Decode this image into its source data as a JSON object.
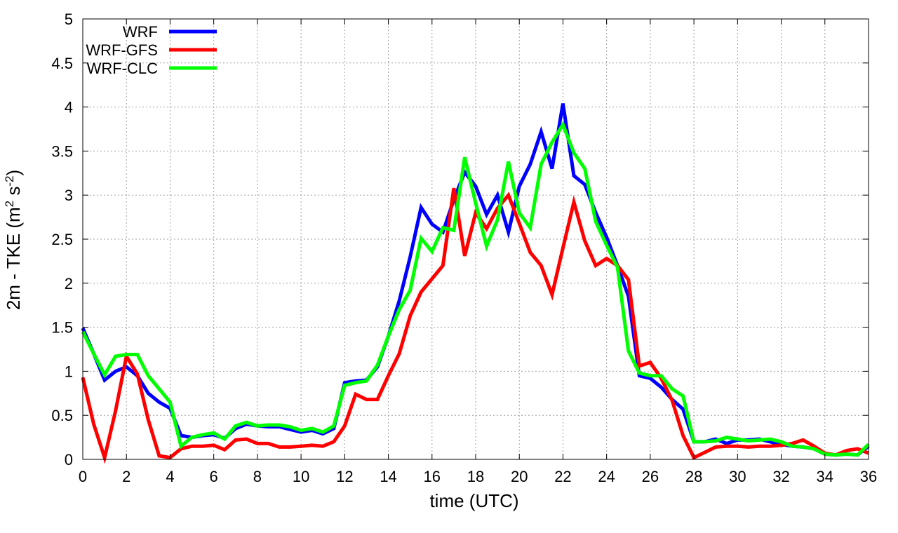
{
  "chart_data": {
    "type": "line",
    "xlabel": "time (UTC)",
    "ylabel_main": "2m - TKE (m",
    "ylabel_sup1": "2",
    "ylabel_mid": " s",
    "ylabel_sup2": "-2",
    "ylabel_end": ")",
    "xlim": [
      0,
      36
    ],
    "ylim": [
      0,
      5
    ],
    "xticks": [
      "0",
      "2",
      "4",
      "6",
      "8",
      "10",
      "12",
      "14",
      "16",
      "18",
      "20",
      "22",
      "24",
      "26",
      "28",
      "30",
      "32",
      "34",
      "36"
    ],
    "yticks": [
      "0",
      "0.5",
      "1",
      "1.5",
      "2",
      "2.5",
      "3",
      "3.5",
      "4",
      "4.5",
      "5"
    ],
    "grid": true,
    "legend_position": "top-left",
    "series": [
      {
        "name": "WRF",
        "color": "#0000ff",
        "points": [
          [
            0,
            1.49
          ],
          [
            0.5,
            1.2
          ],
          [
            1,
            0.9
          ],
          [
            1.5,
            1.0
          ],
          [
            2,
            1.05
          ],
          [
            2.5,
            0.95
          ],
          [
            3,
            0.75
          ],
          [
            3.5,
            0.65
          ],
          [
            4,
            0.58
          ],
          [
            4.5,
            0.27
          ],
          [
            5,
            0.25
          ],
          [
            5.5,
            0.27
          ],
          [
            6,
            0.28
          ],
          [
            6.5,
            0.24
          ],
          [
            7,
            0.35
          ],
          [
            7.5,
            0.4
          ],
          [
            8,
            0.38
          ],
          [
            8.5,
            0.37
          ],
          [
            9,
            0.37
          ],
          [
            9.5,
            0.34
          ],
          [
            10,
            0.31
          ],
          [
            10.5,
            0.33
          ],
          [
            11,
            0.29
          ],
          [
            11.5,
            0.35
          ],
          [
            12,
            0.87
          ],
          [
            12.5,
            0.89
          ],
          [
            13,
            0.9
          ],
          [
            13.5,
            1.05
          ],
          [
            14,
            1.4
          ],
          [
            14.5,
            1.8
          ],
          [
            15,
            2.3
          ],
          [
            15.5,
            2.86
          ],
          [
            16,
            2.67
          ],
          [
            16.5,
            2.58
          ],
          [
            17,
            2.95
          ],
          [
            17.5,
            3.26
          ],
          [
            18,
            3.1
          ],
          [
            18.5,
            2.78
          ],
          [
            19,
            3.0
          ],
          [
            19.5,
            2.58
          ],
          [
            20,
            3.1
          ],
          [
            20.5,
            3.35
          ],
          [
            21,
            3.72
          ],
          [
            21.5,
            3.3
          ],
          [
            22,
            4.04
          ],
          [
            22.5,
            3.22
          ],
          [
            23,
            3.12
          ],
          [
            23.5,
            2.8
          ],
          [
            24,
            2.52
          ],
          [
            24.5,
            2.2
          ],
          [
            25,
            1.85
          ],
          [
            25.5,
            0.95
          ],
          [
            26,
            0.92
          ],
          [
            26.5,
            0.82
          ],
          [
            27,
            0.68
          ],
          [
            27.5,
            0.57
          ],
          [
            28,
            0.2
          ],
          [
            28.5,
            0.2
          ],
          [
            29,
            0.23
          ],
          [
            29.5,
            0.18
          ],
          [
            30,
            0.22
          ],
          [
            30.5,
            0.22
          ],
          [
            31,
            0.23
          ],
          [
            31.5,
            0.2
          ],
          [
            32,
            0.17
          ],
          [
            32.5,
            0.15
          ],
          [
            33,
            0.14
          ],
          [
            33.5,
            0.12
          ],
          [
            34,
            0.06
          ],
          [
            34.5,
            0.05
          ],
          [
            35,
            0.06
          ],
          [
            35.5,
            0.05
          ],
          [
            36,
            0.15
          ]
        ]
      },
      {
        "name": "WRF-GFS",
        "color": "#ff0000",
        "points": [
          [
            0,
            0.93
          ],
          [
            0.5,
            0.4
          ],
          [
            1,
            0.02
          ],
          [
            1.5,
            0.55
          ],
          [
            2,
            1.17
          ],
          [
            2.5,
            0.97
          ],
          [
            3,
            0.45
          ],
          [
            3.5,
            0.04
          ],
          [
            4,
            0.02
          ],
          [
            4.5,
            0.12
          ],
          [
            5,
            0.15
          ],
          [
            5.5,
            0.15
          ],
          [
            6,
            0.16
          ],
          [
            6.5,
            0.11
          ],
          [
            7,
            0.22
          ],
          [
            7.5,
            0.23
          ],
          [
            8,
            0.18
          ],
          [
            8.5,
            0.18
          ],
          [
            9,
            0.14
          ],
          [
            9.5,
            0.14
          ],
          [
            10,
            0.15
          ],
          [
            10.5,
            0.16
          ],
          [
            11,
            0.15
          ],
          [
            11.5,
            0.2
          ],
          [
            12,
            0.38
          ],
          [
            12.5,
            0.74
          ],
          [
            13,
            0.68
          ],
          [
            13.5,
            0.68
          ],
          [
            14,
            0.95
          ],
          [
            14.5,
            1.2
          ],
          [
            15,
            1.63
          ],
          [
            15.5,
            1.9
          ],
          [
            16,
            2.05
          ],
          [
            16.5,
            2.2
          ],
          [
            17,
            3.08
          ],
          [
            17.5,
            2.31
          ],
          [
            18,
            2.8
          ],
          [
            18.5,
            2.62
          ],
          [
            19,
            2.85
          ],
          [
            19.5,
            3.0
          ],
          [
            20,
            2.68
          ],
          [
            20.5,
            2.35
          ],
          [
            21,
            2.2
          ],
          [
            21.5,
            1.87
          ],
          [
            22,
            2.4
          ],
          [
            22.5,
            2.92
          ],
          [
            23,
            2.48
          ],
          [
            23.5,
            2.2
          ],
          [
            24,
            2.28
          ],
          [
            24.5,
            2.2
          ],
          [
            25,
            2.04
          ],
          [
            25.5,
            1.06
          ],
          [
            26,
            1.1
          ],
          [
            26.5,
            0.92
          ],
          [
            27,
            0.67
          ],
          [
            27.5,
            0.27
          ],
          [
            28,
            0.02
          ],
          [
            28.5,
            0.08
          ],
          [
            29,
            0.14
          ],
          [
            29.5,
            0.15
          ],
          [
            30,
            0.15
          ],
          [
            30.5,
            0.14
          ],
          [
            31,
            0.15
          ],
          [
            31.5,
            0.15
          ],
          [
            32,
            0.16
          ],
          [
            32.5,
            0.18
          ],
          [
            33,
            0.22
          ],
          [
            33.5,
            0.15
          ],
          [
            34,
            0.07
          ],
          [
            34.5,
            0.05
          ],
          [
            35,
            0.1
          ],
          [
            35.5,
            0.12
          ],
          [
            36,
            0.07
          ]
        ]
      },
      {
        "name": "WRF-CLC",
        "color": "#00ff00",
        "points": [
          [
            0,
            1.45
          ],
          [
            0.5,
            1.2
          ],
          [
            1,
            0.96
          ],
          [
            1.5,
            1.17
          ],
          [
            2,
            1.19
          ],
          [
            2.5,
            1.19
          ],
          [
            3,
            0.95
          ],
          [
            3.5,
            0.8
          ],
          [
            4,
            0.65
          ],
          [
            4.5,
            0.15
          ],
          [
            5,
            0.25
          ],
          [
            5.5,
            0.28
          ],
          [
            6,
            0.3
          ],
          [
            6.5,
            0.23
          ],
          [
            7,
            0.38
          ],
          [
            7.5,
            0.42
          ],
          [
            8,
            0.38
          ],
          [
            8.5,
            0.39
          ],
          [
            9,
            0.39
          ],
          [
            9.5,
            0.37
          ],
          [
            10,
            0.33
          ],
          [
            10.5,
            0.35
          ],
          [
            11,
            0.31
          ],
          [
            11.5,
            0.38
          ],
          [
            12,
            0.84
          ],
          [
            12.5,
            0.87
          ],
          [
            13,
            0.89
          ],
          [
            13.5,
            1.07
          ],
          [
            14,
            1.4
          ],
          [
            14.5,
            1.7
          ],
          [
            15,
            1.92
          ],
          [
            15.5,
            2.51
          ],
          [
            16,
            2.36
          ],
          [
            16.5,
            2.63
          ],
          [
            17,
            2.6
          ],
          [
            17.5,
            3.43
          ],
          [
            18,
            2.91
          ],
          [
            18.5,
            2.42
          ],
          [
            19,
            2.72
          ],
          [
            19.5,
            3.38
          ],
          [
            20,
            2.8
          ],
          [
            20.5,
            2.63
          ],
          [
            21,
            3.35
          ],
          [
            21.5,
            3.6
          ],
          [
            22,
            3.8
          ],
          [
            22.5,
            3.48
          ],
          [
            23,
            3.3
          ],
          [
            23.5,
            2.7
          ],
          [
            24,
            2.43
          ],
          [
            24.5,
            2.18
          ],
          [
            25,
            1.23
          ],
          [
            25.5,
            0.98
          ],
          [
            26,
            0.95
          ],
          [
            26.5,
            0.95
          ],
          [
            27,
            0.8
          ],
          [
            27.5,
            0.72
          ],
          [
            28,
            0.2
          ],
          [
            28.5,
            0.2
          ],
          [
            29,
            0.21
          ],
          [
            29.5,
            0.25
          ],
          [
            30,
            0.23
          ],
          [
            30.5,
            0.21
          ],
          [
            31,
            0.22
          ],
          [
            31.5,
            0.23
          ],
          [
            32,
            0.2
          ],
          [
            32.5,
            0.15
          ],
          [
            33,
            0.14
          ],
          [
            33.5,
            0.12
          ],
          [
            34,
            0.06
          ],
          [
            34.5,
            0.05
          ],
          [
            35,
            0.06
          ],
          [
            35.5,
            0.05
          ],
          [
            36,
            0.17
          ]
        ]
      }
    ]
  }
}
